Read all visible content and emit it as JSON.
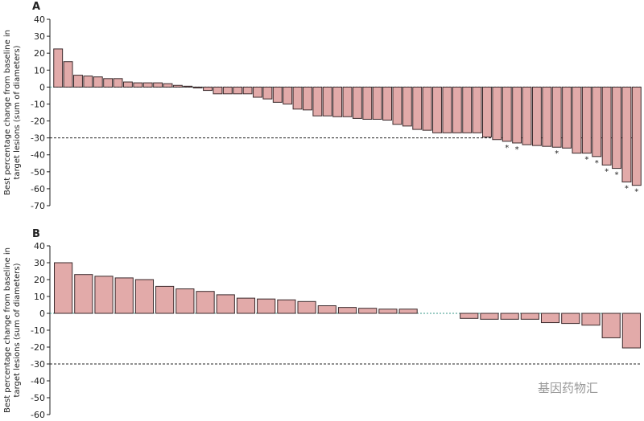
{
  "chart_data": [
    {
      "type": "bar",
      "panel": "A",
      "ylabel": [
        "Best percentage change from baseline in",
        "target lesions (sum of diameters)"
      ],
      "values": [
        22.5,
        15,
        7,
        6.5,
        6,
        5,
        5,
        3,
        2.5,
        2.5,
        2.5,
        2,
        1,
        0.5,
        -0.5,
        -2,
        -4,
        -4,
        -4,
        -4,
        -6,
        -7,
        -9,
        -10,
        -13,
        -13.5,
        -17,
        -17,
        -17.5,
        -17.5,
        -18.5,
        -19,
        -19,
        -19.5,
        -22,
        -23,
        -25,
        -25.5,
        -27,
        -27,
        -27,
        -27,
        -27,
        -29.5,
        -31,
        -32,
        -33,
        -34,
        -34.5,
        -35,
        -35.5,
        -36,
        -39,
        -39,
        -41,
        -46,
        -48,
        -56,
        -58
      ],
      "notes": [
        null,
        null,
        null,
        null,
        null,
        null,
        null,
        null,
        null,
        null,
        null,
        null,
        null,
        null,
        null,
        null,
        null,
        null,
        null,
        null,
        null,
        null,
        null,
        null,
        null,
        null,
        null,
        null,
        null,
        null,
        null,
        null,
        null,
        null,
        null,
        null,
        null,
        null,
        null,
        null,
        null,
        null,
        null,
        null,
        null,
        "*",
        "*",
        null,
        null,
        null,
        "*",
        null,
        null,
        "*",
        "*",
        "*",
        "*",
        "*",
        "*"
      ],
      "color": "#e2aaa9",
      "ylim": [
        -70,
        40
      ],
      "yticks": [
        -70,
        -60,
        -50,
        -40,
        -30,
        -20,
        -10,
        0,
        10,
        20,
        30,
        40
      ],
      "threshold": -30
    },
    {
      "type": "bar",
      "panel": "B",
      "ylabel": [
        "Best percentage change from baseline in",
        "target lesions (sum of diameters)"
      ],
      "values": [
        30,
        23,
        22,
        21,
        20,
        16,
        14.5,
        13,
        11,
        9,
        8.5,
        8,
        7,
        4.5,
        3.5,
        3,
        2.5,
        2.5,
        null,
        null,
        -3,
        -3.5,
        -3.5,
        -3.5,
        -5.5,
        -6,
        -7,
        -14.5,
        -20.5
      ],
      "color": "#e2aaa9",
      "ylim": [
        -60,
        40
      ],
      "yticks": [
        -60,
        -50,
        -40,
        -30,
        -20,
        -10,
        0,
        10,
        20,
        30,
        40
      ],
      "threshold": -30
    }
  ],
  "watermark": "基因药物汇"
}
